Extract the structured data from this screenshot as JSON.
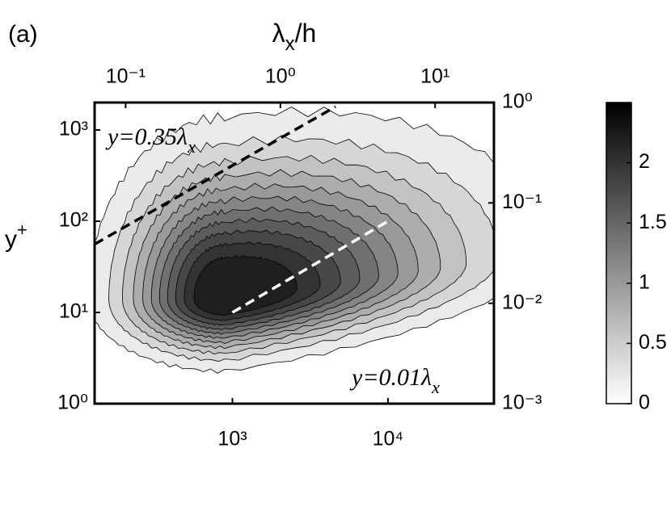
{
  "panel_label": "(a)",
  "chart_data": {
    "type": "contour",
    "x2_label": {
      "text": "λ",
      "sub": "x",
      "rest": "/h"
    },
    "y_label": {
      "text": "y",
      "sup": "+"
    },
    "xscale": "log",
    "yscale": "log",
    "xlim": [
      130,
      48000
    ],
    "xticks": [
      {
        "value": 1000,
        "label": "10³"
      },
      {
        "value": 10000,
        "label": "10⁴"
      }
    ],
    "x2lim": [
      0.063,
      24
    ],
    "x2ticks": [
      {
        "value": 0.1,
        "label": "10⁻¹"
      },
      {
        "value": 1,
        "label": "10⁰"
      },
      {
        "value": 10,
        "label": "10¹"
      }
    ],
    "ylim": [
      1,
      2000
    ],
    "yticks": [
      {
        "value": 1,
        "label": "10⁰"
      },
      {
        "value": 10,
        "label": "10¹"
      },
      {
        "value": 100,
        "label": "10²"
      },
      {
        "value": 1000,
        "label": "10³"
      }
    ],
    "y2lim": [
      0.001,
      1
    ],
    "y2ticks": [
      {
        "value": 0.001,
        "label": "10⁻³"
      },
      {
        "value": 0.01,
        "label": "10⁻²"
      },
      {
        "value": 0.1,
        "label": "10⁻¹"
      },
      {
        "value": 1,
        "label": "10⁰"
      }
    ],
    "levels": [
      0.2,
      0.4,
      0.6,
      0.8,
      1.0,
      1.2,
      1.4,
      1.6,
      1.8,
      2.0,
      2.2
    ],
    "colormap": [
      "#ffffff",
      "#000000"
    ],
    "colorbar": {
      "lim": [
        0,
        2.5
      ],
      "ticks": [
        0,
        0.5,
        1,
        1.5,
        2
      ]
    },
    "reference_lines": [
      {
        "label": {
          "text": "y=0.35λ",
          "sub": "x"
        },
        "color": "#000000",
        "x": [
          130,
          4600
        ],
        "y": [
          56,
          1800
        ]
      },
      {
        "label": {
          "text": "y=0.01λ",
          "sub": "x"
        },
        "color": "#ffffff",
        "x": [
          1000,
          10500
        ],
        "y": [
          10,
          105
        ]
      }
    ]
  }
}
